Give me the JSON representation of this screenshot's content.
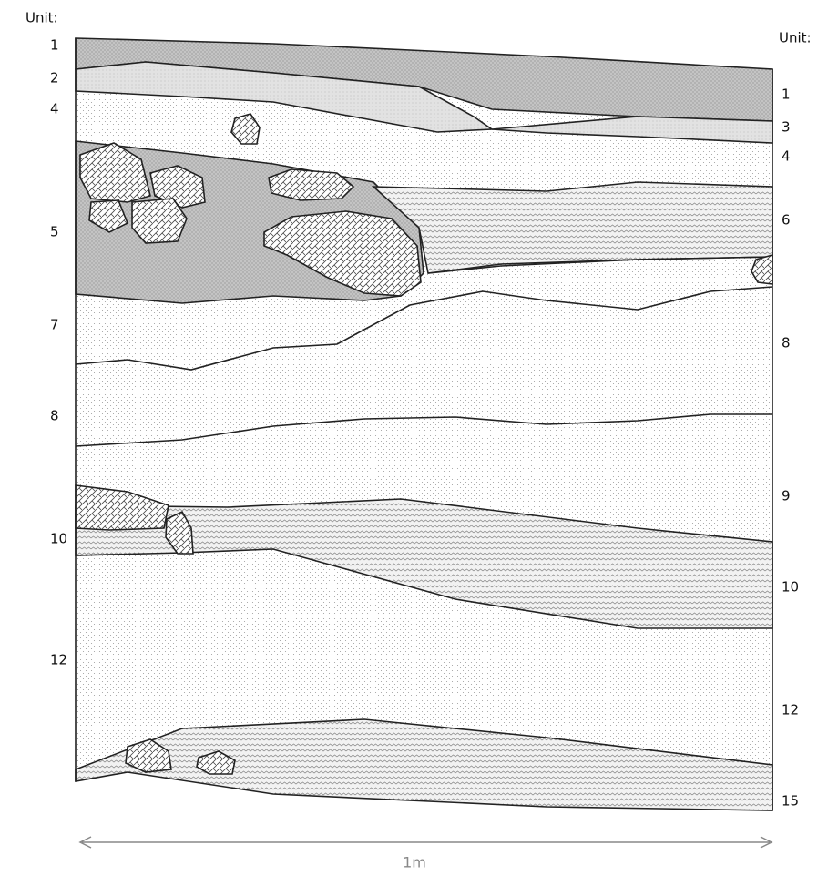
{
  "left_units": {
    "heading": "Unit:",
    "labels": [
      "1",
      "2",
      "4",
      "5",
      "7",
      "8",
      "10",
      "12"
    ]
  },
  "right_units": {
    "heading": "Unit:",
    "labels": [
      "1",
      "3",
      "4",
      "6",
      "8",
      "9",
      "10",
      "12",
      "15"
    ]
  },
  "scale": {
    "label": "1m"
  }
}
